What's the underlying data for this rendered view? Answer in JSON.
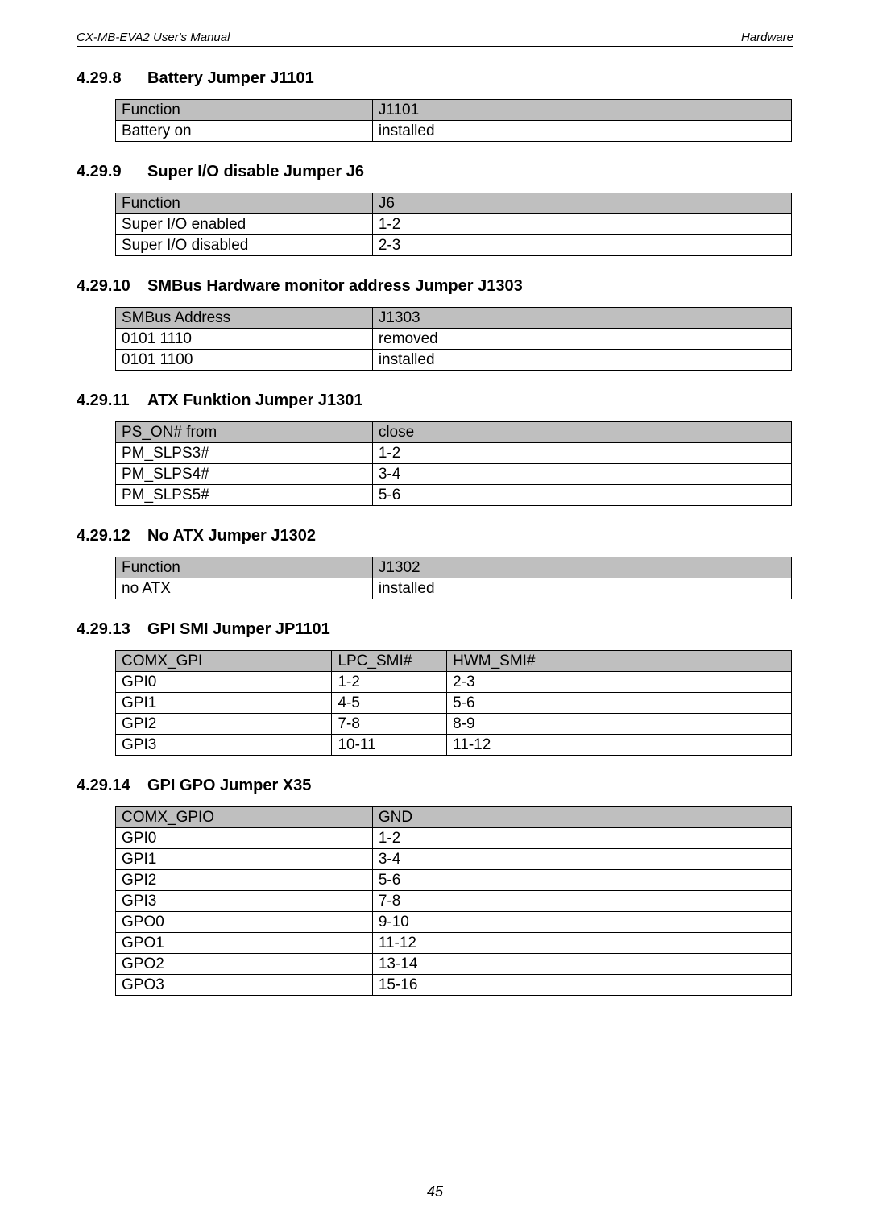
{
  "header": {
    "left": "CX-MB-EVA2  User's Manual",
    "right": "Hardware"
  },
  "page_number": "45",
  "sections": [
    {
      "num": "4.29.8",
      "title": "Battery Jumper J1101"
    },
    {
      "num": "4.29.9",
      "title": "Super I/O disable Jumper J6"
    },
    {
      "num": "4.29.10",
      "title": "SMBus Hardware monitor address Jumper J1303"
    },
    {
      "num": "4.29.11",
      "title": "ATX Funktion Jumper J1301"
    },
    {
      "num": "4.29.12",
      "title": "No ATX Jumper J1302"
    },
    {
      "num": "4.29.13",
      "title": "GPI SMI Jumper JP1101"
    },
    {
      "num": "4.29.14",
      "title": "GPI GPO Jumper X35"
    }
  ],
  "t1101": {
    "head": [
      "Function",
      "J1101"
    ],
    "rows": [
      [
        "Battery on",
        "installed"
      ]
    ]
  },
  "t6": {
    "head": [
      "Function",
      "J6"
    ],
    "rows": [
      [
        "Super I/O enabled",
        "1-2"
      ],
      [
        "Super I/O disabled",
        "2-3"
      ]
    ]
  },
  "t1303": {
    "head": [
      "SMBus Address",
      "J1303"
    ],
    "rows": [
      [
        "0101 1110",
        "removed"
      ],
      [
        "0101 1100",
        "installed"
      ]
    ]
  },
  "t1301": {
    "head": [
      "PS_ON# from",
      "close"
    ],
    "rows": [
      [
        "PM_SLPS3#",
        "1-2"
      ],
      [
        "PM_SLPS4#",
        "3-4"
      ],
      [
        "PM_SLPS5#",
        "5-6"
      ]
    ]
  },
  "t1302": {
    "head": [
      "Function",
      "J1302"
    ],
    "rows": [
      [
        "no ATX",
        "installed"
      ]
    ]
  },
  "tjp1101": {
    "head": [
      "COMX_GPI",
      "LPC_SMI#",
      "HWM_SMI#"
    ],
    "rows": [
      [
        "GPI0",
        "1-2",
        "2-3"
      ],
      [
        "GPI1",
        "4-5",
        "5-6"
      ],
      [
        "GPI2",
        "7-8",
        "8-9"
      ],
      [
        "GPI3",
        "10-11",
        "11-12"
      ]
    ]
  },
  "tx35": {
    "head": [
      "COMX_GPIO",
      "GND"
    ],
    "rows": [
      [
        "GPI0",
        "1-2"
      ],
      [
        "GPI1",
        "3-4"
      ],
      [
        "GPI2",
        "5-6"
      ],
      [
        "GPI3",
        "7-8"
      ],
      [
        "GPO0",
        "9-10"
      ],
      [
        "GPO1",
        "11-12"
      ],
      [
        "GPO2",
        "13-14"
      ],
      [
        "GPO3",
        "15-16"
      ]
    ]
  },
  "colors": {
    "header_bg": "#bfbfbf",
    "border": "#000000",
    "text": "#000000",
    "bg": "#ffffff"
  }
}
